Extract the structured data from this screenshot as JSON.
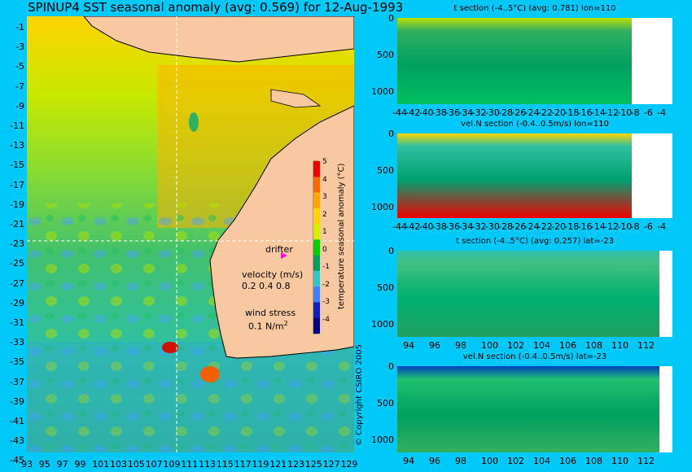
{
  "title": "SPINUP4 SST seasonal anomaly (avg: 0.569) for 12-Aug-1993",
  "copyright": "© Copyright CSIRO 2005",
  "map": {
    "lat_ticks": [
      "-1",
      "-3",
      "-5",
      "-7",
      "-9",
      "-11",
      "-13",
      "-15",
      "-17",
      "-19",
      "-21",
      "-23",
      "-25",
      "-27",
      "-29",
      "-31",
      "-33",
      "-35",
      "-37",
      "-39",
      "-41",
      "-43",
      "-45"
    ],
    "lon_ticks": [
      "93",
      "95",
      "97",
      "99",
      "101",
      "103",
      "105",
      "107",
      "109",
      "111",
      "113",
      "115",
      "117",
      "119",
      "121",
      "123",
      "125",
      "127",
      "129"
    ],
    "crosshair": {
      "lat": -23,
      "lon": 110
    },
    "legend": {
      "drifter_label": "drifter",
      "velocity_label": "velocity (m/s)",
      "velocity_scale": [
        "0.2",
        "0.4",
        "0.8"
      ],
      "wind_label": "wind stress",
      "wind_value": "0.1 N/m",
      "wind_exp": "2"
    },
    "colorbar": {
      "label": "temperature seasonal anomaly (°C)",
      "ticks": [
        "5",
        "4",
        "3",
        "2",
        "1",
        "0",
        "-1",
        "-2",
        "-3",
        "-4"
      ],
      "colors": [
        "#f00000",
        "#ff6a00",
        "#ffa500",
        "#ffd400",
        "#d8f000",
        "#00d000",
        "#00a060",
        "#30c8c8",
        "#4080ff",
        "#1020c0",
        "#000080"
      ]
    }
  },
  "sections": [
    {
      "title": "t section (-4..5°C) (avg: 0.781) lon=110",
      "yticks": [
        "0",
        "500",
        "1000"
      ],
      "xticks": [
        "-44",
        "-42",
        "-40",
        "-38",
        "-36",
        "-34",
        "-32",
        "-30",
        "-28",
        "-26",
        "-24",
        "-22",
        "-20",
        "-18",
        "-16",
        "-14",
        "-12",
        "-10",
        "-8",
        "-6",
        "-4"
      ]
    },
    {
      "title": "vel.N section (-0.4..0.5m/s) lon=110",
      "yticks": [
        "0",
        "500",
        "1000"
      ],
      "xticks": [
        "-44",
        "-42",
        "-40",
        "-38",
        "-36",
        "-34",
        "-32",
        "-30",
        "-28",
        "-26",
        "-24",
        "-22",
        "-20",
        "-18",
        "-16",
        "-14",
        "-12",
        "-10",
        "-8",
        "-6",
        "-4"
      ]
    },
    {
      "title": "t section (-4..5°C) (avg: 0.257) lat=-23",
      "yticks": [
        "0",
        "500",
        "1000"
      ],
      "xticks": [
        "94",
        "96",
        "98",
        "100",
        "102",
        "104",
        "106",
        "108",
        "110",
        "112"
      ]
    },
    {
      "title": "vel.N section (-0.4..0.5m/s) lat=-23",
      "yticks": [
        "0",
        "500",
        "1000"
      ],
      "xticks": [
        "94",
        "96",
        "98",
        "100",
        "102",
        "104",
        "106",
        "108",
        "110",
        "112"
      ]
    }
  ],
  "chart_data": [
    {
      "type": "heatmap",
      "title": "SPINUP4 SST seasonal anomaly (avg: 0.569) for 12-Aug-1993",
      "xlim": [
        93,
        130
      ],
      "ylim": [
        -45,
        0
      ],
      "colorbar_range": [
        -4,
        5
      ],
      "units": "°C"
    },
    {
      "type": "heatmap",
      "title": "t section (-4..5°C) (avg: 0.781) lon=110",
      "xlim": [
        -45,
        -3
      ],
      "ylim": [
        1050,
        0
      ]
    },
    {
      "type": "heatmap",
      "title": "vel.N section (-0.4..0.5m/s) lon=110",
      "xlim": [
        -45,
        -3
      ],
      "ylim": [
        1050,
        0
      ]
    },
    {
      "type": "heatmap",
      "title": "t section (-4..5°C) (avg: 0.257) lat=-23",
      "xlim": [
        93,
        114
      ],
      "ylim": [
        1050,
        0
      ]
    },
    {
      "type": "heatmap",
      "title": "vel.N section (-0.4..0.5m/s) lat=-23",
      "xlim": [
        93,
        114
      ],
      "ylim": [
        1050,
        0
      ]
    }
  ]
}
